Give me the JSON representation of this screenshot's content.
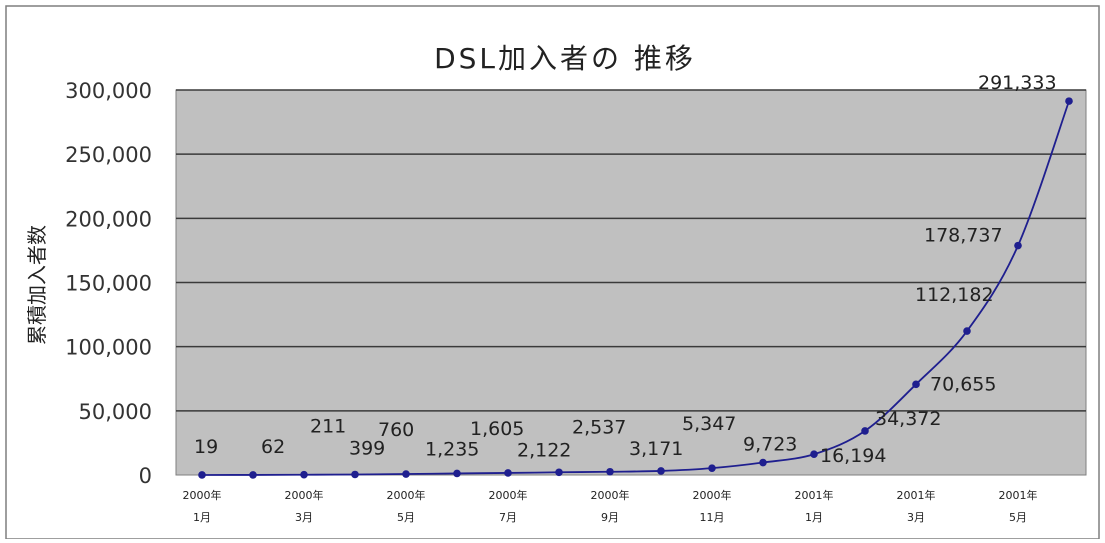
{
  "chart_data": {
    "type": "line",
    "title": "DSL加入者の 推移",
    "ylabel": "累積加入者数",
    "xlabel": "",
    "ylim": [
      0,
      300000
    ],
    "yticks": [
      "0",
      "50,000",
      "100,000",
      "150,000",
      "200,000",
      "250,000",
      "300,000"
    ],
    "ytick_values": [
      0,
      50000,
      100000,
      150000,
      200000,
      250000,
      300000
    ],
    "grid": true,
    "legend": "none",
    "plot_background": "#c0c0c0",
    "line_color": "#1f1f8f",
    "x_tick_labels": [
      {
        "year": "2000年",
        "month": "1月",
        "index": 0
      },
      {
        "year": "2000年",
        "month": "3月",
        "index": 2
      },
      {
        "year": "2000年",
        "month": "5月",
        "index": 4
      },
      {
        "year": "2000年",
        "month": "7月",
        "index": 6
      },
      {
        "year": "2000年",
        "month": "9月",
        "index": 8
      },
      {
        "year": "2000年",
        "month": "11月",
        "index": 10
      },
      {
        "year": "2001年",
        "month": "1月",
        "index": 12
      },
      {
        "year": "2001年",
        "month": "3月",
        "index": 14
      },
      {
        "year": "2001年",
        "month": "5月",
        "index": 16
      }
    ],
    "values": [
      19,
      62,
      211,
      399,
      760,
      1235,
      1605,
      2122,
      2537,
      3171,
      5347,
      9723,
      16194,
      34372,
      70655,
      112182,
      178737,
      291333
    ],
    "data_labels": [
      "19",
      "62",
      "211",
      "399",
      "760",
      "1,235",
      "1,605",
      "2,122",
      "2,537",
      "3,171",
      "5,347",
      "9,723",
      "16,194",
      "34,372",
      "70,655",
      "112,182",
      "178,737",
      "291,333"
    ]
  }
}
